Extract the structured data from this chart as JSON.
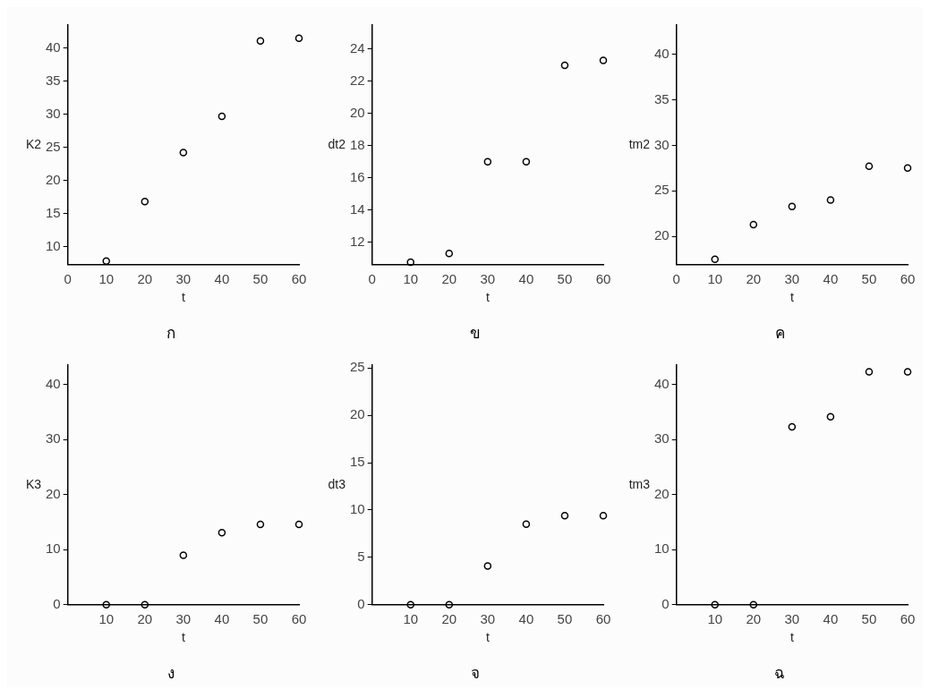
{
  "chart_data": [
    {
      "type": "scatter",
      "title": "ก",
      "xlabel": "t",
      "ylabel": "K2",
      "x": [
        10,
        20,
        30,
        40,
        50,
        60
      ],
      "values": [
        7.8,
        16.8,
        24.2,
        29.7,
        41.1,
        41.5
      ],
      "color": "#000000",
      "marker": "circle",
      "xlim": [
        0,
        60
      ],
      "xticks": [
        0,
        10,
        20,
        30,
        40,
        50,
        60
      ],
      "ylim": [
        7.25,
        43.5
      ],
      "yticks": [
        10,
        15,
        20,
        25,
        30,
        35,
        40
      ]
    },
    {
      "type": "scatter",
      "title": "ข",
      "xlabel": "t",
      "ylabel": "dt2",
      "x": [
        10,
        20,
        30,
        40,
        50,
        60
      ],
      "values": [
        10.76,
        11.3,
        17.0,
        17.0,
        23.0,
        23.3
      ],
      "color": "#000000",
      "marker": "circle",
      "xlim": [
        0,
        60
      ],
      "xticks": [
        0,
        10,
        20,
        30,
        40,
        50,
        60
      ],
      "ylim": [
        10.6,
        25.5
      ],
      "yticks": [
        12,
        14,
        16,
        18,
        20,
        22,
        24
      ]
    },
    {
      "type": "scatter",
      "title": "ค",
      "xlabel": "t",
      "ylabel": "tm2",
      "x": [
        10,
        20,
        30,
        40,
        50,
        60
      ],
      "values": [
        17.5,
        21.3,
        23.3,
        24.0,
        27.7,
        27.5
      ],
      "color": "#000000",
      "marker": "circle",
      "xlim": [
        0,
        60
      ],
      "xticks": [
        0,
        10,
        20,
        30,
        40,
        50,
        60
      ],
      "ylim": [
        16.9,
        43.2
      ],
      "yticks": [
        20,
        25,
        30,
        35,
        40
      ]
    },
    {
      "type": "scatter",
      "title": "ง",
      "xlabel": "t",
      "ylabel": "K3",
      "x": [
        10,
        20,
        30,
        40,
        50,
        60
      ],
      "values": [
        0,
        0,
        9.0,
        13.1,
        14.6,
        14.6
      ],
      "color": "#000000",
      "marker": "circle",
      "xlim": [
        0,
        60
      ],
      "xticks": [
        10,
        20,
        30,
        40,
        50,
        60
      ],
      "ylim": [
        0,
        43.5
      ],
      "yticks": [
        0,
        10,
        20,
        30,
        40
      ]
    },
    {
      "type": "scatter",
      "title": "จ",
      "xlabel": "t",
      "ylabel": "dt3",
      "x": [
        10,
        20,
        30,
        40,
        50,
        60
      ],
      "values": [
        0,
        0,
        4.1,
        8.5,
        9.4,
        9.4
      ],
      "color": "#000000",
      "marker": "circle",
      "xlim": [
        0,
        60
      ],
      "xticks": [
        10,
        20,
        30,
        40,
        50,
        60
      ],
      "ylim": [
        0,
        25.3
      ],
      "yticks": [
        0,
        5,
        10,
        15,
        20,
        25
      ]
    },
    {
      "type": "scatter",
      "title": "ฉ",
      "xlabel": "t",
      "ylabel": "tm3",
      "x": [
        10,
        20,
        30,
        40,
        50,
        60
      ],
      "values": [
        0,
        0,
        32.3,
        34.1,
        42.3,
        42.3
      ],
      "color": "#000000",
      "marker": "circle",
      "xlim": [
        0,
        60
      ],
      "xticks": [
        10,
        20,
        30,
        40,
        50,
        60
      ],
      "ylim": [
        0,
        43.5
      ],
      "yticks": [
        0,
        10,
        20,
        30,
        40
      ]
    }
  ]
}
